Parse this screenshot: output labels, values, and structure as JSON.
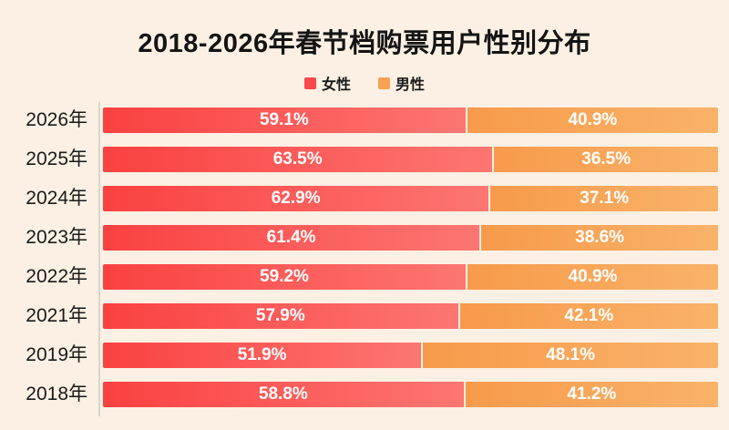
{
  "title": "2018-2026年春节档购票用户性别分布",
  "legend": {
    "female_label": "女性",
    "male_label": "男性",
    "female_color": "#f8494c",
    "male_color": "#f8a053"
  },
  "colors": {
    "background": "#fbf0e3",
    "female_gradient_start": "#fa4141",
    "female_gradient_end": "#fc7672",
    "male_gradient_start": "#f79a4b",
    "male_gradient_end": "#f9b369",
    "axis_line": "#d9d5cd",
    "value_text": "#ffffff",
    "label_text": "#1a1a1a"
  },
  "chart_data": {
    "type": "bar",
    "orientation": "horizontal-stacked",
    "title": "2018-2026年春节档购票用户性别分布",
    "categories": [
      "2026年",
      "2025年",
      "2024年",
      "2023年",
      "2022年",
      "2021年",
      "2019年",
      "2018年"
    ],
    "series": [
      {
        "name": "女性",
        "color": "#f8494c",
        "values": [
          59.1,
          63.5,
          62.9,
          61.4,
          59.2,
          57.9,
          51.9,
          58.8
        ]
      },
      {
        "name": "男性",
        "color": "#f8a053",
        "values": [
          40.9,
          36.5,
          37.1,
          38.6,
          40.9,
          42.1,
          48.1,
          41.2
        ]
      }
    ],
    "value_suffix": "%",
    "xlim": [
      0,
      100
    ],
    "legend_position": "top-center",
    "grid": false,
    "rows": [
      {
        "label": "2026年",
        "female": 59.1,
        "male": 40.9,
        "female_label": "59.1%",
        "male_label": "40.9%"
      },
      {
        "label": "2025年",
        "female": 63.5,
        "male": 36.5,
        "female_label": "63.5%",
        "male_label": "36.5%"
      },
      {
        "label": "2024年",
        "female": 62.9,
        "male": 37.1,
        "female_label": "62.9%",
        "male_label": "37.1%"
      },
      {
        "label": "2023年",
        "female": 61.4,
        "male": 38.6,
        "female_label": "61.4%",
        "male_label": "38.6%"
      },
      {
        "label": "2022年",
        "female": 59.2,
        "male": 40.9,
        "female_label": "59.2%",
        "male_label": "40.9%"
      },
      {
        "label": "2021年",
        "female": 57.9,
        "male": 42.1,
        "female_label": "57.9%",
        "male_label": "42.1%"
      },
      {
        "label": "2019年",
        "female": 51.9,
        "male": 48.1,
        "female_label": "51.9%",
        "male_label": "48.1%"
      },
      {
        "label": "2018年",
        "female": 58.8,
        "male": 41.2,
        "female_label": "58.8%",
        "male_label": "41.2%"
      }
    ]
  }
}
